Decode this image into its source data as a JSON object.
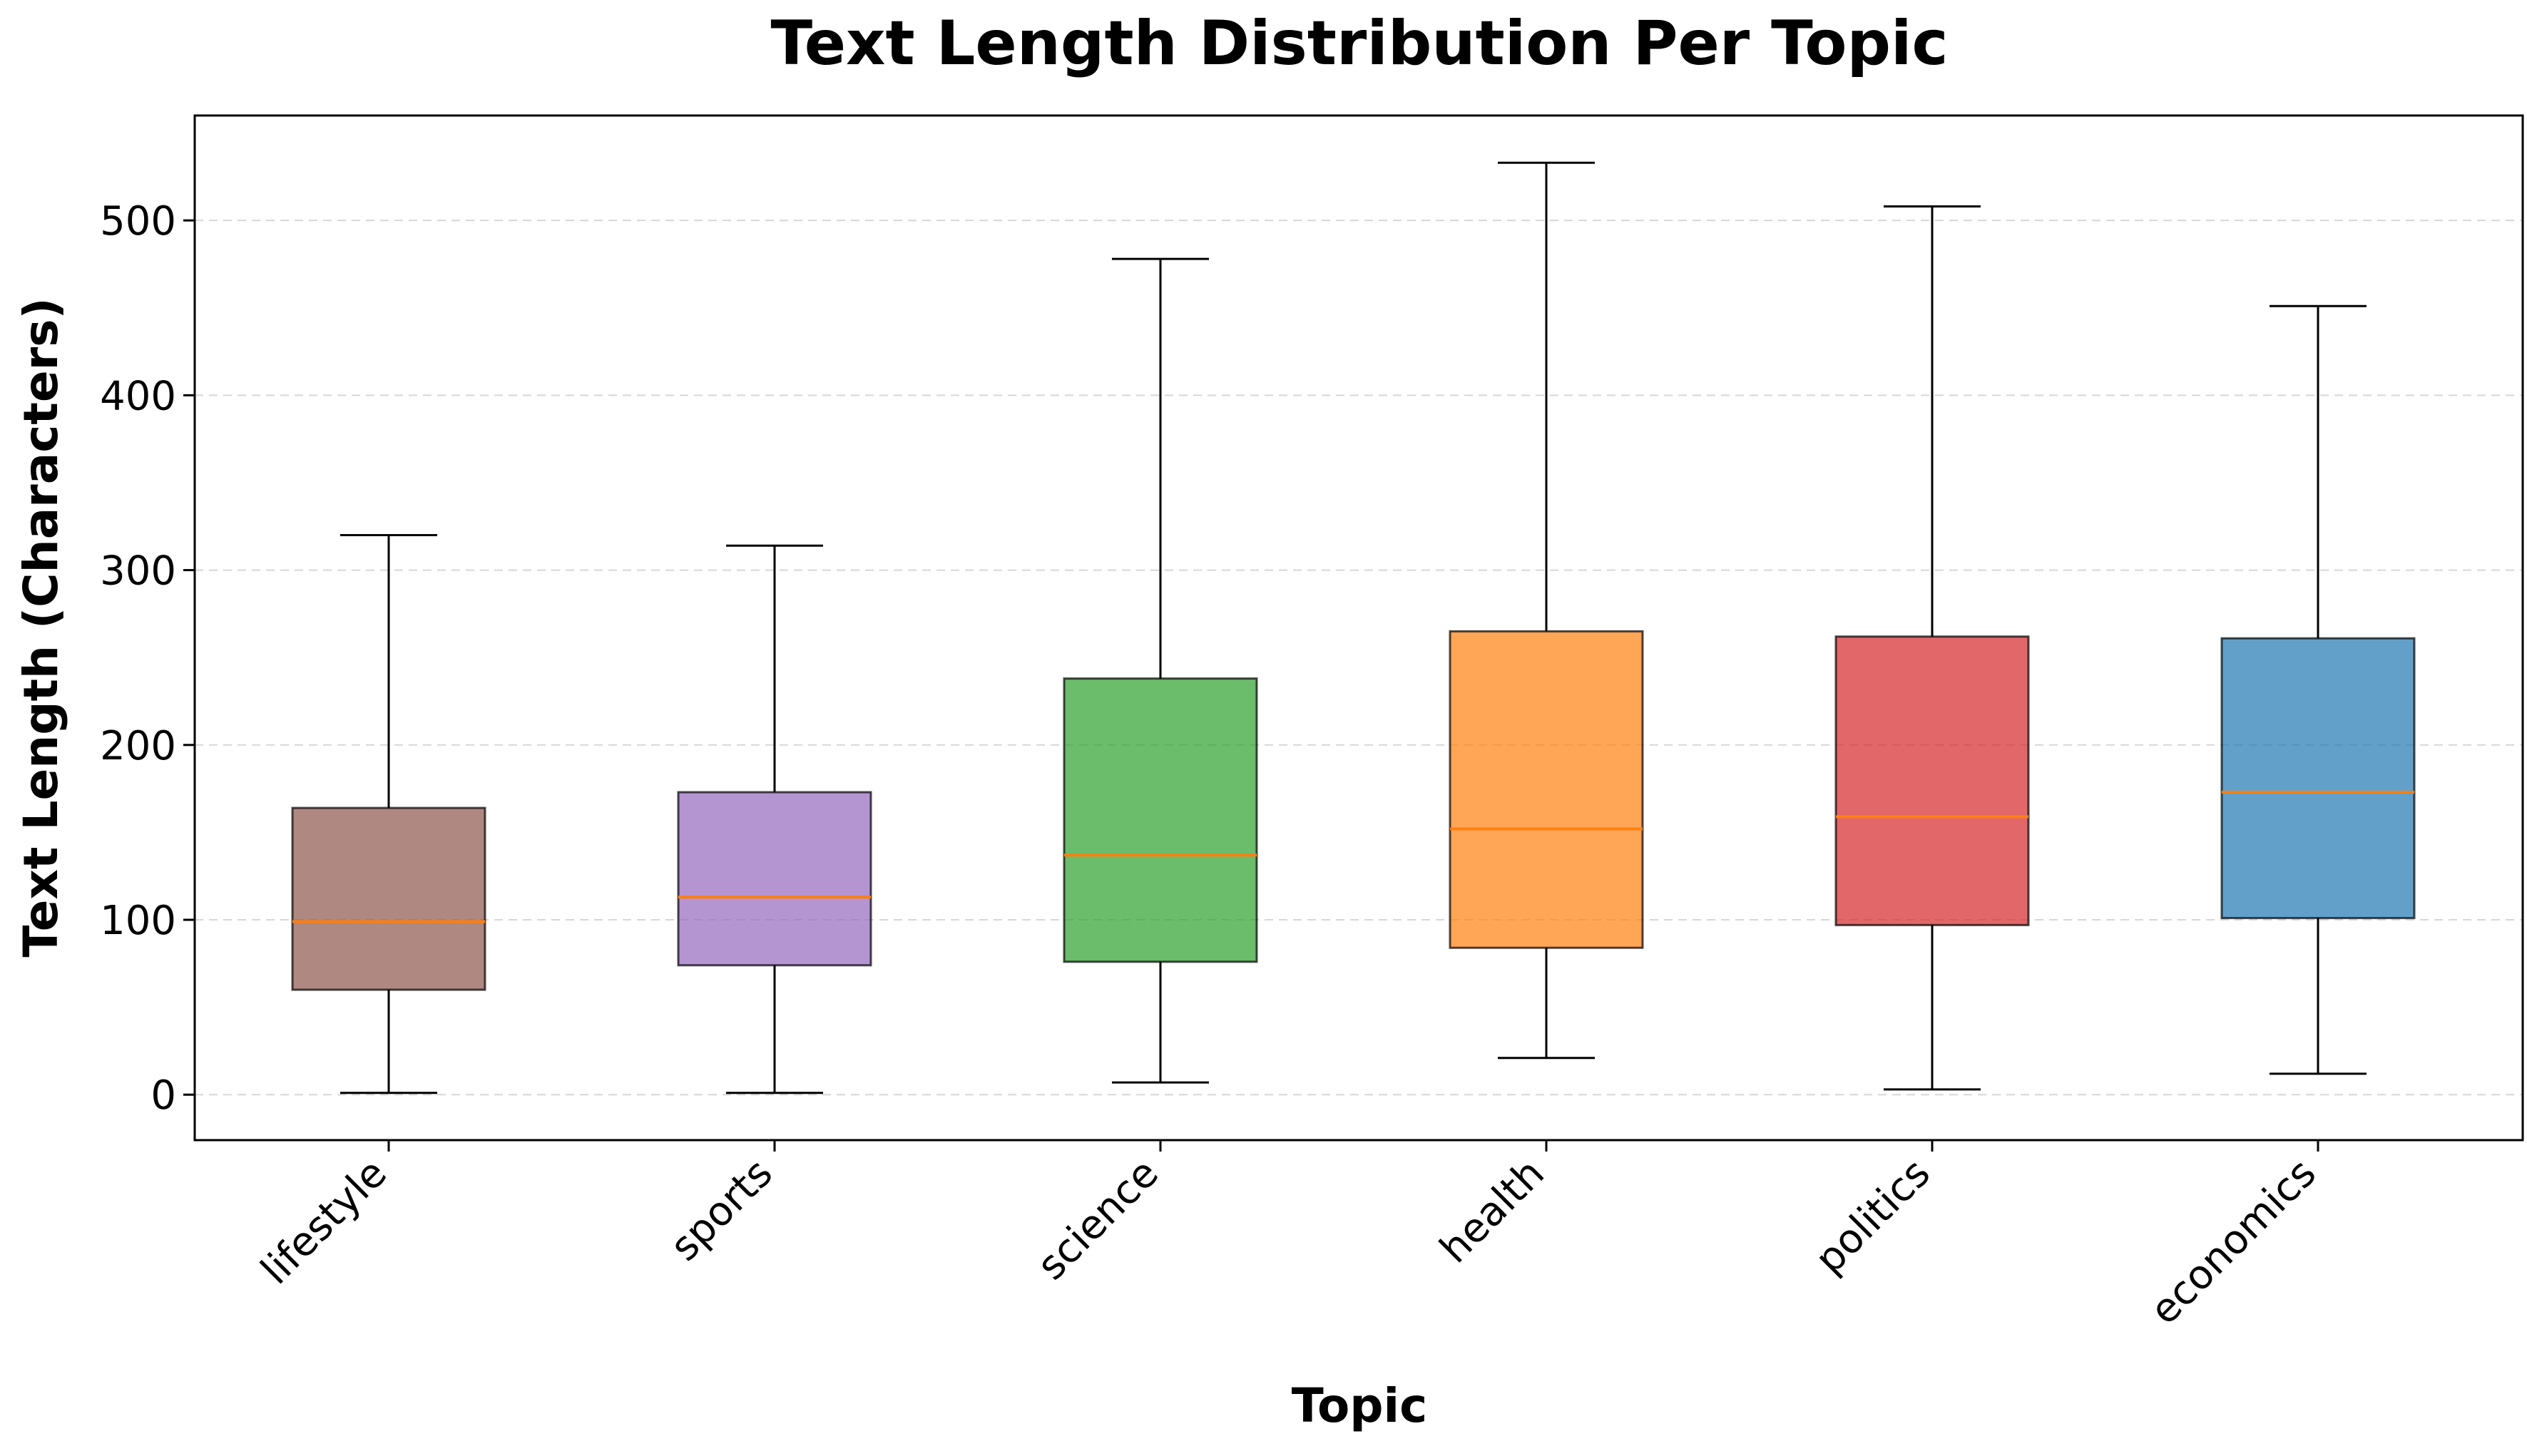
{
  "chart_data": {
    "type": "box",
    "title": "Text Length Distribution Per Topic",
    "xlabel": "Topic",
    "ylabel": "Text Length (Characters)",
    "ylim": [
      -26,
      560
    ],
    "yticks": [
      0,
      100,
      200,
      300,
      400,
      500
    ],
    "grid": "y-dashed",
    "categories": [
      "lifestyle",
      "sports",
      "science",
      "health",
      "politics",
      "economics"
    ],
    "boxes": [
      {
        "category": "lifestyle",
        "whisker_low": 1,
        "q1": 60,
        "median": 99,
        "q3": 164,
        "whisker_high": 320,
        "color": "#8c564b"
      },
      {
        "category": "sports",
        "whisker_low": 1,
        "q1": 74,
        "median": 113,
        "q3": 173,
        "whisker_high": 314,
        "color": "#9467bd"
      },
      {
        "category": "science",
        "whisker_low": 7,
        "q1": 76,
        "median": 137,
        "q3": 238,
        "whisker_high": 478,
        "color": "#2ca02c"
      },
      {
        "category": "health",
        "whisker_low": 21,
        "q1": 84,
        "median": 152,
        "q3": 265,
        "whisker_high": 533,
        "color": "#ff7f0e"
      },
      {
        "category": "politics",
        "whisker_low": 3,
        "q1": 97,
        "median": 159,
        "q3": 262,
        "whisker_high": 508,
        "color": "#d62728"
      },
      {
        "category": "economics",
        "whisker_low": 12,
        "q1": 101,
        "median": 173,
        "q3": 261,
        "whisker_high": 451,
        "color": "#1f77b4"
      }
    ],
    "median_color": "#ff7f0e",
    "box_alpha": 0.7
  }
}
